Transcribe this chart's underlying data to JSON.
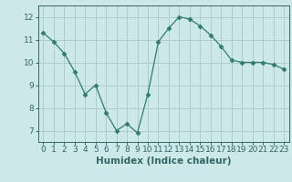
{
  "x": [
    0,
    1,
    2,
    3,
    4,
    5,
    6,
    7,
    8,
    9,
    10,
    11,
    12,
    13,
    14,
    15,
    16,
    17,
    18,
    19,
    20,
    21,
    22,
    23
  ],
  "y": [
    11.3,
    10.9,
    10.4,
    9.6,
    8.6,
    9.0,
    7.8,
    7.0,
    7.3,
    6.9,
    8.6,
    10.9,
    11.5,
    12.0,
    11.9,
    11.6,
    11.2,
    10.7,
    10.1,
    10.0,
    10.0,
    10.0,
    9.9,
    9.7
  ],
  "xlabel": "Humidex (Indice chaleur)",
  "ylim": [
    6.5,
    12.5
  ],
  "xlim": [
    -0.5,
    23.5
  ],
  "yticks": [
    7,
    8,
    9,
    10,
    11,
    12
  ],
  "xticks": [
    0,
    1,
    2,
    3,
    4,
    5,
    6,
    7,
    8,
    9,
    10,
    11,
    12,
    13,
    14,
    15,
    16,
    17,
    18,
    19,
    20,
    21,
    22,
    23
  ],
  "line_color": "#2e7d6e",
  "marker": "D",
  "marker_size": 2.5,
  "bg_color": "#cce8e8",
  "grid_color": "#b0cccc",
  "axis_color": "#336666",
  "xlabel_fontsize": 7.5,
  "tick_fontsize": 6.5
}
